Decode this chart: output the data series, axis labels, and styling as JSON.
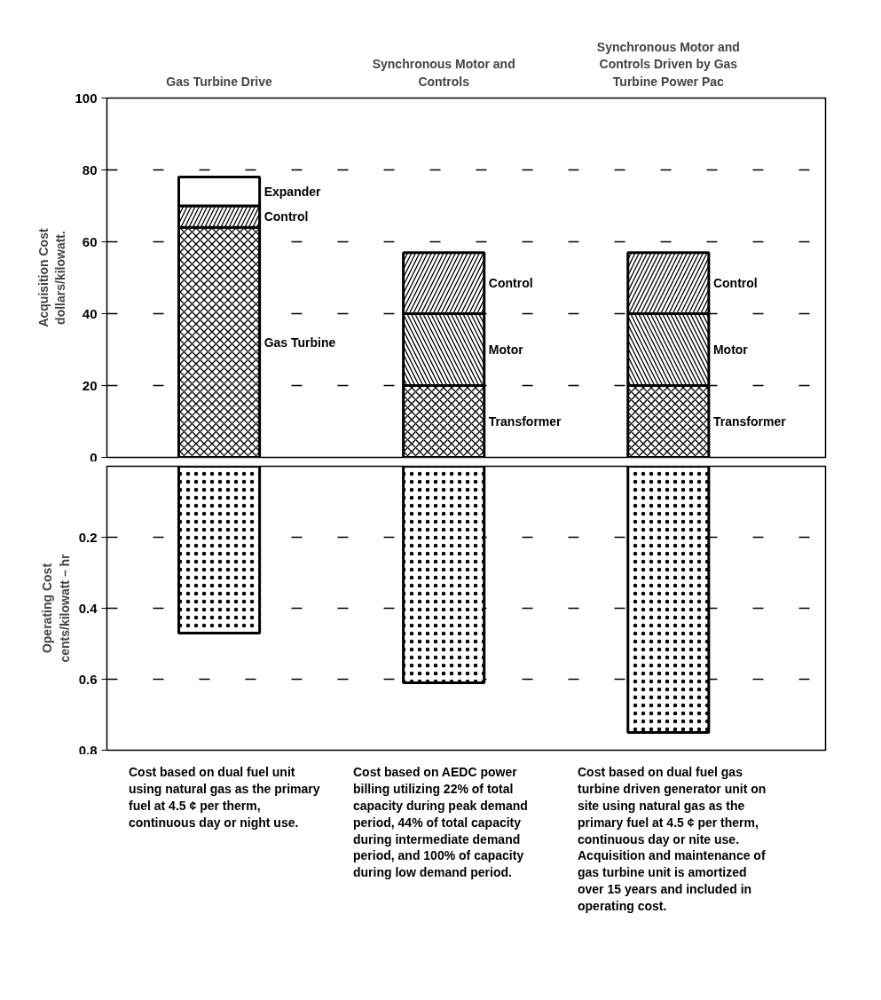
{
  "chart_data": [
    {
      "type": "bar",
      "stacked": true,
      "categories": [
        "Gas Turbine Drive",
        "Synchronous Motor and Controls",
        "Synchronous Motor and Controls Driven by Gas Turbine Power Pac"
      ],
      "ylabel": "Acquisition Cost\ndollars/kilowatt.",
      "ylim": [
        0,
        100
      ],
      "yticks": [
        0,
        20,
        40,
        60,
        80,
        100
      ],
      "grid": "y",
      "series": [
        {
          "name": "Gas Turbine",
          "color": "#000000",
          "values": [
            64,
            null,
            null
          ]
        },
        {
          "name": "Transformer",
          "color": "#000000",
          "values": [
            null,
            20,
            20
          ]
        },
        {
          "name": "Motor",
          "color": "#000000",
          "values": [
            null,
            20,
            20
          ]
        },
        {
          "name": "Control",
          "color": "#000000",
          "values": [
            6,
            17,
            17
          ]
        },
        {
          "name": "Expander",
          "color": "#000000",
          "values": [
            8,
            null,
            null
          ]
        }
      ]
    },
    {
      "type": "bar",
      "categories": [
        "Gas Turbine Drive",
        "Synchronous Motor and Controls",
        "Synchronous Motor and Controls Driven by Gas Turbine Power Pac"
      ],
      "tick_labels": "y",
      "ylabel": "Operating Cost\ncents/kilowatt – hr",
      "ylim": [
        0.8,
        0
      ],
      "yticks": [
        0.2,
        0.4,
        0.6,
        0.8
      ],
      "grid": "y",
      "series": [
        {
          "color": "#000000",
          "values": [
            0.47,
            0.61,
            0.75
          ]
        }
      ],
      "annotations": [
        "Cost based on dual fuel unit using natural gas as the primary fuel at 4.5 ¢ per therm, continuous day or night use.",
        "Cost based on AEDC power billing utilizing 22% of total capacity during peak demand period, 44% of total capacity during intermediate demand period, and 100% of capacity during low demand period.",
        "Cost based on dual fuel gas turbine driven generator unit on site using natural gas as the primary fuel at 4.5 ¢ per therm, continuous day or nite use. Acquisition and maintenance of gas turbine unit is amortized over 15 years and included in operating cost."
      ]
    }
  ]
}
